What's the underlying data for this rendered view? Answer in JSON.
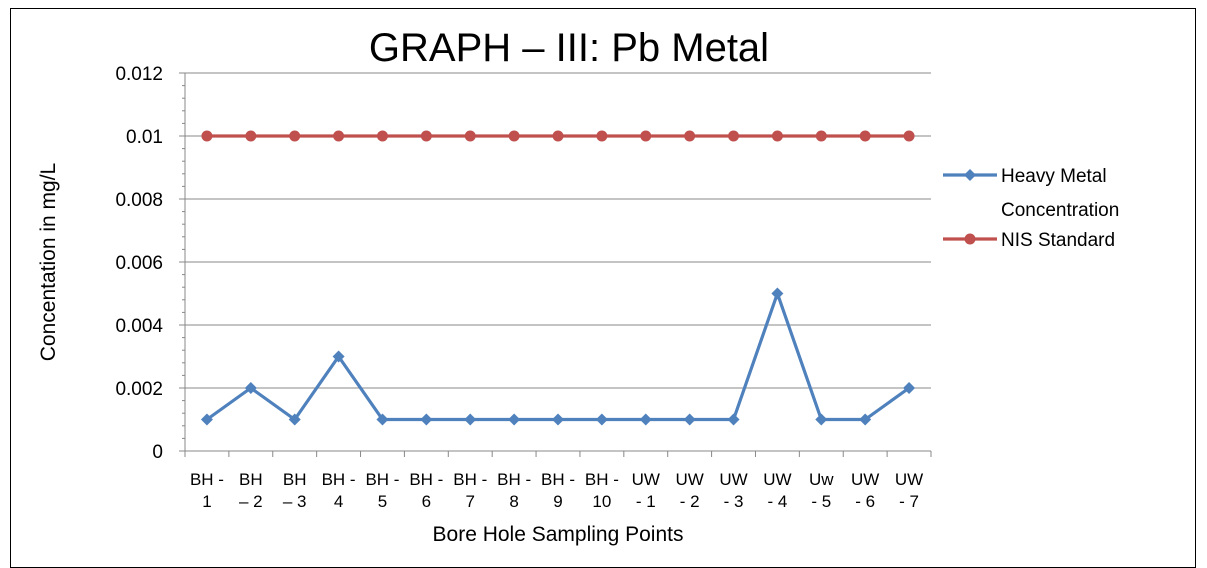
{
  "chart_data": {
    "type": "line",
    "title": "GRAPH – III: Pb Metal",
    "xlabel": "Bore Hole Sampling Points",
    "ylabel": "Concentation in  mg/L",
    "ylim": [
      0,
      0.012
    ],
    "ytick_step": 0.002,
    "ytick_labels": [
      "0",
      "0.002",
      "0.004",
      "0.006",
      "0.008",
      "0.01",
      "0.012"
    ],
    "grid": true,
    "legend_position": "right",
    "categories": [
      [
        "BH -",
        "1"
      ],
      [
        "BH",
        "– 2"
      ],
      [
        "BH",
        "– 3"
      ],
      [
        "BH -",
        "4"
      ],
      [
        "BH -",
        "5"
      ],
      [
        "BH -",
        "6"
      ],
      [
        "BH -",
        "7"
      ],
      [
        "BH -",
        "8"
      ],
      [
        "BH -",
        "9"
      ],
      [
        "BH -",
        "10"
      ],
      [
        "UW",
        "- 1"
      ],
      [
        "UW",
        "- 2"
      ],
      [
        "UW",
        "- 3"
      ],
      [
        "UW",
        "- 4"
      ],
      [
        "Uw",
        "- 5"
      ],
      [
        "UW",
        "- 6"
      ],
      [
        "UW",
        "- 7"
      ]
    ],
    "series": [
      {
        "name": "Heavy Metal Concentration",
        "legend_lines": [
          "Heavy Metal",
          "Concentration"
        ],
        "color": "#4f81bd",
        "marker": "diamond",
        "values": [
          0.001,
          0.002,
          0.001,
          0.003,
          0.001,
          0.001,
          0.001,
          0.001,
          0.001,
          0.001,
          0.001,
          0.001,
          0.001,
          0.005,
          0.001,
          0.001,
          0.002
        ]
      },
      {
        "name": "NIS Standard",
        "legend_lines": [
          "NIS Standard"
        ],
        "color": "#c0504d",
        "marker": "circle",
        "values": [
          0.01,
          0.01,
          0.01,
          0.01,
          0.01,
          0.01,
          0.01,
          0.01,
          0.01,
          0.01,
          0.01,
          0.01,
          0.01,
          0.01,
          0.01,
          0.01,
          0.01
        ]
      }
    ]
  }
}
